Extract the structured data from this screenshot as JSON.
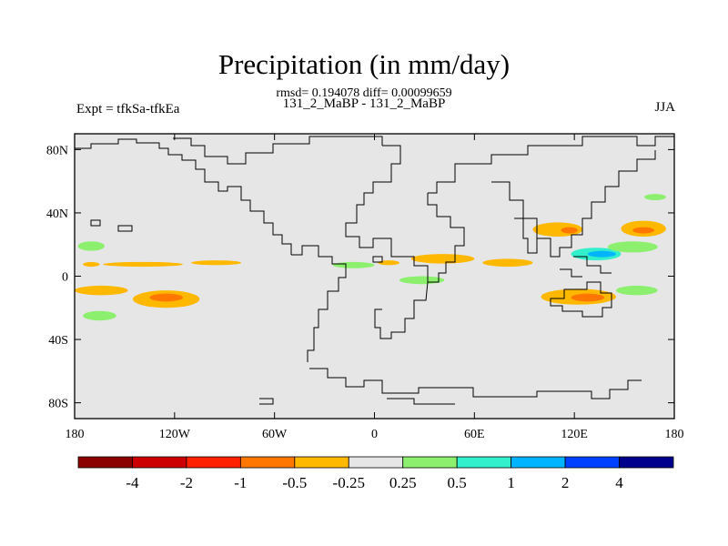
{
  "chart_data": {
    "type": "heatmap",
    "title": "Precipitation (in mm/day)",
    "stats_line": "rmsd= 0.194078 diff= 0.00099659",
    "subtitle": "131_2_MaBP - 131_2_MaBP",
    "left_label": "Expt = tfkSa-tfkEa",
    "right_label": "JJA",
    "xlabel": "",
    "ylabel": "",
    "xlim": [
      -180,
      180
    ],
    "ylim": [
      -90,
      90
    ],
    "x_ticks": [
      {
        "value": -180,
        "label": "180"
      },
      {
        "value": -120,
        "label": "120W"
      },
      {
        "value": -60,
        "label": "60W"
      },
      {
        "value": 0,
        "label": "0"
      },
      {
        "value": 60,
        "label": "60E"
      },
      {
        "value": 120,
        "label": "120E"
      },
      {
        "value": 180,
        "label": "180"
      }
    ],
    "y_ticks": [
      {
        "value": 80,
        "label": "80N"
      },
      {
        "value": 40,
        "label": "40N"
      },
      {
        "value": 0,
        "label": "0"
      },
      {
        "value": -40,
        "label": "40S"
      },
      {
        "value": -80,
        "label": "80S"
      }
    ],
    "colorbar": {
      "colors": [
        "#8b0000",
        "#cc0000",
        "#ff2200",
        "#ff7700",
        "#ffb800",
        "#e6e6e6",
        "#8cf06e",
        "#33f0cc",
        "#00b4ff",
        "#0040ff",
        "#00008c"
      ],
      "labels": [
        "-4",
        "-2",
        "-1",
        "-0.5",
        "-0.25",
        "0.25",
        "0.5",
        "1",
        "2",
        "4"
      ]
    },
    "anomaly_regions": [
      {
        "name": "north-pacific-itcz-band",
        "level": 4,
        "lon": [
          -163,
          -115
        ],
        "lat": [
          6,
          9
        ]
      },
      {
        "name": "north-pacific-band-east",
        "level": 4,
        "lon": [
          -110,
          -80
        ],
        "lat": [
          7,
          10
        ]
      },
      {
        "name": "north-pacific-patch-small",
        "level": 4,
        "lon": [
          -175,
          -165
        ],
        "lat": [
          6,
          9
        ]
      },
      {
        "name": "south-pacific-band-west",
        "level": 4,
        "lon": [
          -180,
          -148
        ],
        "lat": [
          -12,
          -6
        ]
      },
      {
        "name": "south-pacific-band-main",
        "level": 4,
        "lon": [
          -145,
          -105
        ],
        "lat": [
          -20,
          -9
        ]
      },
      {
        "name": "south-pacific-core",
        "level": 3,
        "lon": [
          -135,
          -115
        ],
        "lat": [
          -16,
          -11
        ]
      },
      {
        "name": "north-pacific-wet-west",
        "level": 6,
        "lon": [
          -178,
          -162
        ],
        "lat": [
          16,
          22
        ]
      },
      {
        "name": "south-pacific-wet-sw",
        "level": 6,
        "lon": [
          -175,
          -155
        ],
        "lat": [
          -28,
          -22
        ]
      },
      {
        "name": "africa-sahel-wet",
        "level": 6,
        "lon": [
          -25,
          0
        ],
        "lat": [
          5,
          9
        ]
      },
      {
        "name": "west-africa-dry",
        "level": 4,
        "lon": [
          2,
          15
        ],
        "lat": [
          7,
          10
        ]
      },
      {
        "name": "arabia-dry-band",
        "level": 4,
        "lon": [
          22,
          60
        ],
        "lat": [
          8,
          14
        ]
      },
      {
        "name": "east-africa-wet",
        "level": 6,
        "lon": [
          15,
          42
        ],
        "lat": [
          -5,
          0
        ]
      },
      {
        "name": "indian-ocean-dry",
        "level": 4,
        "lon": [
          65,
          95
        ],
        "lat": [
          6,
          11
        ]
      },
      {
        "name": "south-asia-dry",
        "level": 4,
        "lon": [
          95,
          125
        ],
        "lat": [
          25,
          34
        ]
      },
      {
        "name": "south-asia-core",
        "level": 3,
        "lon": [
          112,
          122
        ],
        "lat": [
          27,
          31
        ]
      },
      {
        "name": "china-wet",
        "level": 7,
        "lon": [
          118,
          148
        ],
        "lat": [
          10,
          18
        ]
      },
      {
        "name": "china-wet-core",
        "level": 8,
        "lon": [
          128,
          145
        ],
        "lat": [
          12,
          16
        ]
      },
      {
        "name": "western-pacific-dry",
        "level": 4,
        "lon": [
          148,
          175
        ],
        "lat": [
          25,
          35
        ]
      },
      {
        "name": "western-pacific-core",
        "level": 3,
        "lon": [
          155,
          168
        ],
        "lat": [
          27,
          31
        ]
      },
      {
        "name": "western-pacific-wet",
        "level": 6,
        "lon": [
          140,
          170
        ],
        "lat": [
          15,
          22
        ]
      },
      {
        "name": "indian-ocean-south-dry",
        "level": 4,
        "lon": [
          100,
          145
        ],
        "lat": [
          -18,
          -8
        ]
      },
      {
        "name": "indian-ocean-south-core",
        "level": 3,
        "lon": [
          118,
          138
        ],
        "lat": [
          -16,
          -11
        ]
      },
      {
        "name": "south-indian-wet",
        "level": 6,
        "lon": [
          145,
          170
        ],
        "lat": [
          -12,
          -6
        ]
      },
      {
        "name": "arctic-east-wet",
        "level": 6,
        "lon": [
          162,
          175
        ],
        "lat": [
          48,
          52
        ]
      }
    ]
  }
}
